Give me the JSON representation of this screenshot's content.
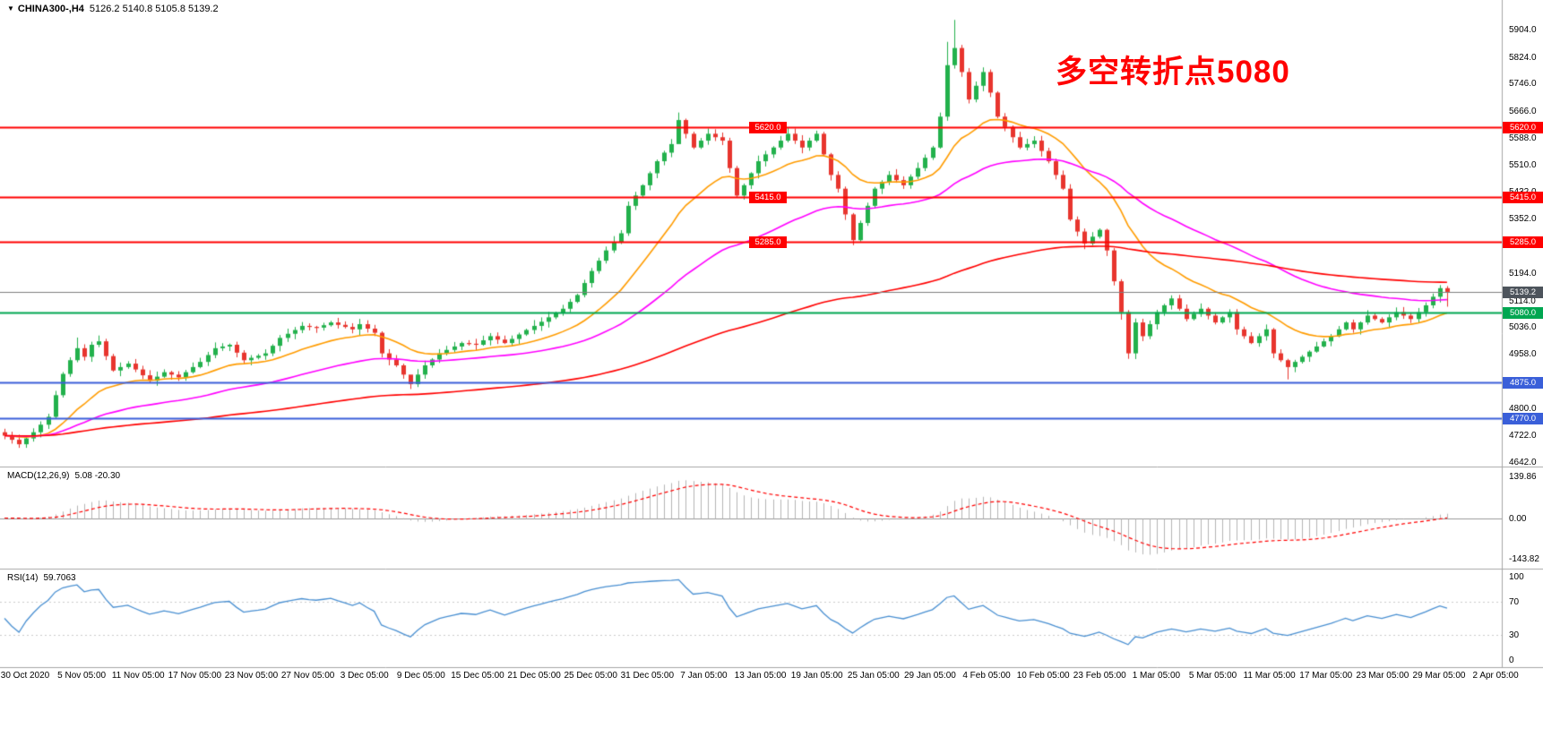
{
  "header": {
    "symbol": "CHINA300-,H4",
    "ohlc": "5126.2 5140.8 5105.8 5139.2"
  },
  "annotation": {
    "text": "多空转折点5080",
    "color": "#ff0000"
  },
  "colors": {
    "up": "#22b14c",
    "down": "#e8352e",
    "background": "#ffffff",
    "axis_text": "#000000",
    "separator": "#a6a6a6",
    "macd_hist": "#b5b5b5",
    "macd_signal": "#ff0000",
    "rsi_line": "#4a90d2",
    "price_line": "#808080"
  },
  "chart_data": [
    {
      "type": "candlestick",
      "symbol": "CHINA300-",
      "timeframe": "H4",
      "current": {
        "open": 5126.2,
        "high": 5140.8,
        "low": 5105.8,
        "close": 5139.2
      },
      "ylim": [
        4630,
        5990
      ],
      "y_ticks": [
        "5904.0",
        "5824.0",
        "5746.0",
        "5666.0",
        "5588.0",
        "5510.0",
        "5432.0",
        "5352.0",
        "5274.0",
        "5194.0",
        "5114.0",
        "5036.0",
        "4958.0",
        "4880.0",
        "4800.0",
        "4722.0",
        "4642.0"
      ],
      "x_ticks": [
        "30 Oct 2020",
        "5 Nov 05:00",
        "11 Nov 05:00",
        "17 Nov 05:00",
        "23 Nov 05:00",
        "27 Nov 05:00",
        "3 Dec 05:00",
        "9 Dec 05:00",
        "15 Dec 05:00",
        "21 Dec 05:00",
        "25 Dec 05:00",
        "31 Dec 05:00",
        "7 Jan 05:00",
        "13 Jan 05:00",
        "19 Jan 05:00",
        "25 Jan 05:00",
        "29 Jan 05:00",
        "4 Feb 05:00",
        "10 Feb 05:00",
        "23 Feb 05:00",
        "1 Mar 05:00",
        "5 Mar 05:00",
        "11 Mar 05:00",
        "17 Mar 05:00",
        "23 Mar 05:00",
        "29 Mar 05:00",
        "2 Apr 05:00"
      ],
      "open_first": 4730,
      "closes": [
        4720,
        4708,
        4695,
        4712,
        4730,
        4752,
        4775,
        4838,
        4900,
        4940,
        4975,
        4950,
        4985,
        4995,
        4952,
        4910,
        4920,
        4930,
        4913,
        4896,
        4880,
        4892,
        4905,
        4898,
        4890,
        4905,
        4920,
        4935,
        4955,
        4975,
        4980,
        4985,
        4962,
        4940,
        4947,
        4953,
        4960,
        4982,
        5005,
        5017,
        5028,
        5040,
        5037,
        5035,
        5042,
        5050,
        5043,
        5037,
        5030,
        5045,
        5032,
        5020,
        4960,
        4942,
        4925,
        4898,
        4870,
        4898,
        4925,
        4942,
        4960,
        4970,
        4980,
        4990,
        4988,
        4985,
        4998,
        5010,
        5000,
        4990,
        5002,
        5015,
        5028,
        5040,
        5052,
        5065,
        5078,
        5090,
        5110,
        5130,
        5165,
        5200,
        5230,
        5260,
        5285,
        5310,
        5390,
        5420,
        5450,
        5485,
        5520,
        5545,
        5570,
        5640,
        5600,
        5560,
        5580,
        5600,
        5590,
        5580,
        5500,
        5420,
        5450,
        5485,
        5520,
        5540,
        5560,
        5580,
        5600,
        5580,
        5560,
        5580,
        5600,
        5540,
        5480,
        5440,
        5365,
        5290,
        5340,
        5390,
        5440,
        5460,
        5480,
        5465,
        5450,
        5475,
        5500,
        5530,
        5560,
        5650,
        5800,
        5850,
        5780,
        5700,
        5740,
        5780,
        5720,
        5650,
        5620,
        5590,
        5560,
        5570,
        5580,
        5550,
        5520,
        5480,
        5440,
        5350,
        5315,
        5280,
        5300,
        5320,
        5260,
        5170,
        5080,
        4960,
        5050,
        5010,
        5045,
        5080,
        5100,
        5120,
        5090,
        5060,
        5075,
        5090,
        5070,
        5050,
        5065,
        5080,
        5030,
        5010,
        4990,
        5010,
        5030,
        4960,
        4940,
        4920,
        4935,
        4950,
        4965,
        4980,
        4995,
        5010,
        5030,
        5050,
        5030,
        5050,
        5070,
        5060,
        5050,
        5065,
        5080,
        5070,
        5060,
        5080,
        5100,
        5125,
        5150,
        5139.2
      ],
      "wick_overrides": {
        "10": [
          5006,
          4934
        ],
        "13": [
          5012,
          4978
        ],
        "56": [
          4886,
          4856
        ],
        "93": [
          5662,
          5588
        ],
        "130": [
          5868,
          5638
        ],
        "131": [
          5932,
          5790
        ],
        "154": [
          5176,
          5058
        ],
        "155": [
          5086,
          4944
        ],
        "175": [
          5034,
          4946
        ],
        "177": [
          4944,
          4884
        ],
        "199": [
          5156,
          5096
        ]
      },
      "moving_averages": [
        {
          "period": 18,
          "color": "#ff9c00"
        },
        {
          "period": 50,
          "color": "#ff00ff"
        },
        {
          "period": 150,
          "color": "#ff0000"
        }
      ],
      "hlines": [
        {
          "value": 5620.0,
          "label": "5620.0",
          "color": "#ff0000",
          "width": 2,
          "mid_tag": true
        },
        {
          "value": 5415.0,
          "label": "5415.0",
          "color": "#ff0000",
          "width": 2,
          "mid_tag": true
        },
        {
          "value": 5285.0,
          "label": "5285.0",
          "color": "#ff0000",
          "width": 2,
          "mid_tag": true
        },
        {
          "value": 5139.2,
          "label": "5139.2",
          "color": "#808080",
          "tag_color": "#4d545c",
          "width": 1
        },
        {
          "value": 5080.0,
          "label": "5080.0",
          "color": "#00a651",
          "width": 2
        },
        {
          "value": 4875.0,
          "label": "4875.0",
          "color": "#3a5fd9",
          "width": 2
        },
        {
          "value": 4770.0,
          "label": "4770.0",
          "color": "#3a5fd9",
          "width": 2
        }
      ]
    },
    {
      "type": "bar",
      "name": "MACD",
      "label": "MACD(12,26,9)",
      "values": "5.08 -20.30",
      "fast": 12,
      "slow": 26,
      "signal": 9,
      "axis_labels": [
        "139.86",
        "0.00",
        "-143.82"
      ]
    },
    {
      "type": "line",
      "name": "RSI",
      "label": "RSI(14)",
      "value": "59.7063",
      "period": 14,
      "levels": [
        70,
        30
      ],
      "axis_labels": [
        "100",
        "70",
        "30",
        "0"
      ]
    }
  ]
}
